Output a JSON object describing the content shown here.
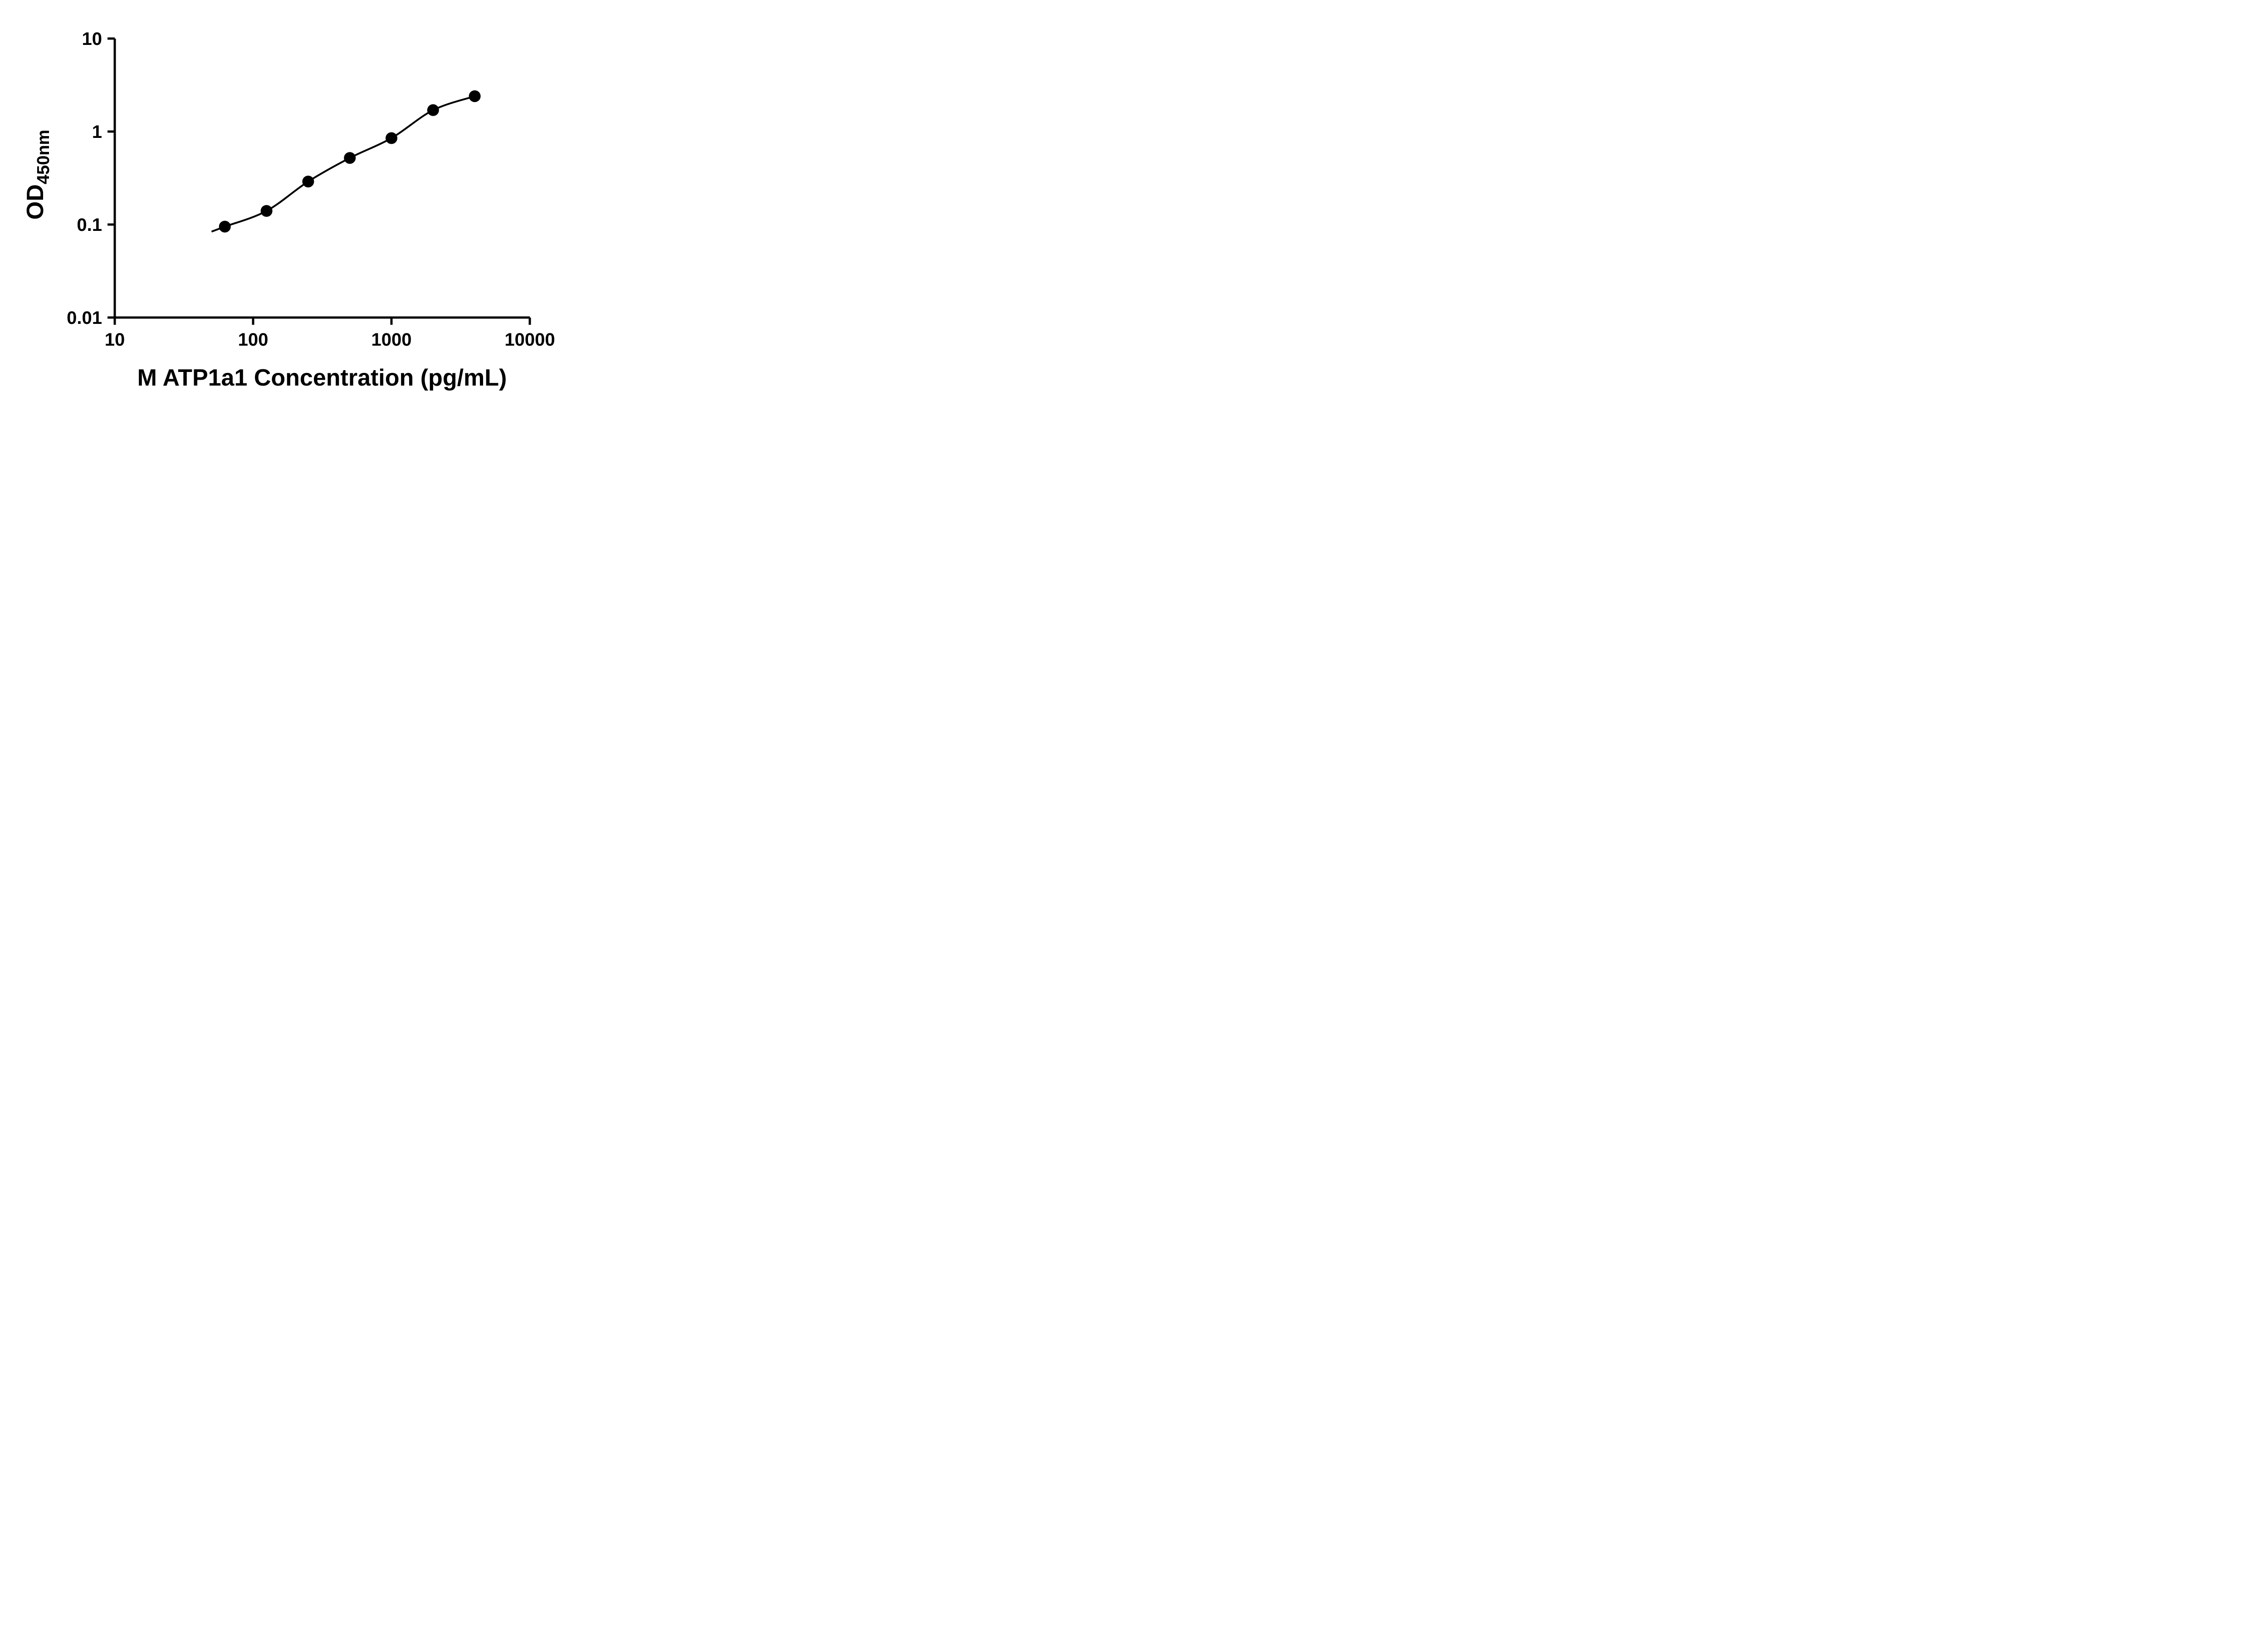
{
  "page": {
    "background_color": "#ffffff"
  },
  "chart": {
    "y_axis_label_main": "OD",
    "y_axis_label_sub": "450nm"
  },
  "chart_data": {
    "type": "scatter",
    "title": "",
    "xlabel": "M ATP1a1 Concentration (pg/mL)",
    "ylabel": "OD450nm",
    "x_scale": "log10",
    "y_scale": "log10",
    "xlim": [
      10,
      10000
    ],
    "ylim": [
      0.01,
      10
    ],
    "x_ticks": [
      10,
      100,
      1000,
      10000
    ],
    "x_tick_labels": [
      "10",
      "100",
      "1000",
      "10000"
    ],
    "y_ticks": [
      0.01,
      0.1,
      1,
      10
    ],
    "y_tick_labels": [
      "0.01",
      "0.1",
      "1",
      "10"
    ],
    "grid": false,
    "legend": false,
    "axis_color": "#000000",
    "series": [
      {
        "x": [
          62.5,
          125,
          250,
          500,
          1000,
          2000,
          4000
        ],
        "y": [
          0.095,
          0.14,
          0.29,
          0.52,
          0.85,
          1.7,
          2.4
        ],
        "marker": "filled-circle",
        "marker_color": "#000000",
        "line": "smooth-fit-curve",
        "line_color": "#000000"
      }
    ]
  }
}
